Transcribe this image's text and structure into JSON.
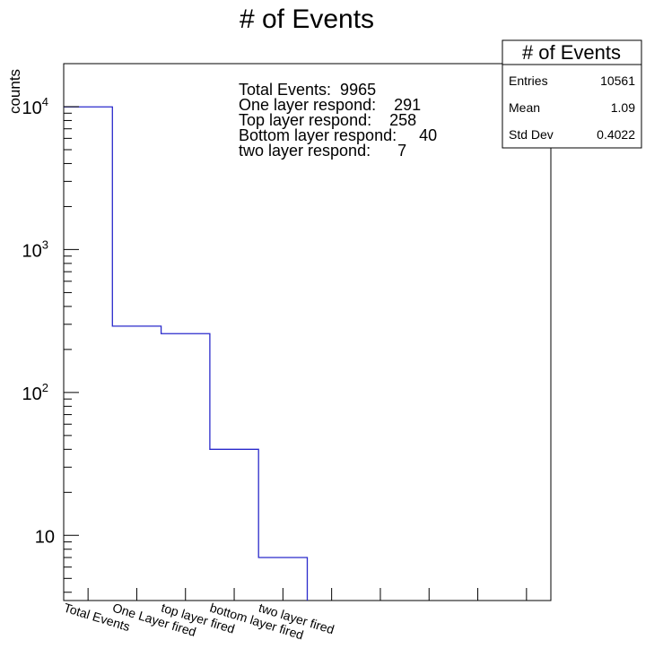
{
  "chart_data": {
    "type": "bar",
    "title": "# of Events",
    "ylabel": "counts",
    "xlabel": "",
    "y_scale": "log",
    "ylim": [
      3.5,
      20000
    ],
    "categories": [
      "Total Events",
      "One Layer fired",
      "top layer fired",
      "bottom layer fired",
      "two layer fired"
    ],
    "values": [
      9965,
      291,
      258,
      40,
      7
    ],
    "y_ticks": [
      {
        "value": 10,
        "label": "10",
        "exp": ""
      },
      {
        "value": 100,
        "label": "10",
        "exp": "2"
      },
      {
        "value": 1000,
        "label": "10",
        "exp": "3"
      },
      {
        "value": 10000,
        "label": "10",
        "exp": "4"
      }
    ],
    "n_bins": 10,
    "grid": false,
    "line_color": "#2a2acb",
    "annotations": [
      "Total Events:  9965",
      "One layer respond:    291",
      "Top layer respond:    258",
      "Bottom layer respond:     40",
      "two layer respond:      7"
    ],
    "stats_box": {
      "title": "# of Events",
      "rows": [
        {
          "label": "Entries",
          "value": "10561"
        },
        {
          "label": "Mean",
          "value": "1.09"
        },
        {
          "label": "Std Dev",
          "value": "0.4022"
        }
      ]
    }
  }
}
